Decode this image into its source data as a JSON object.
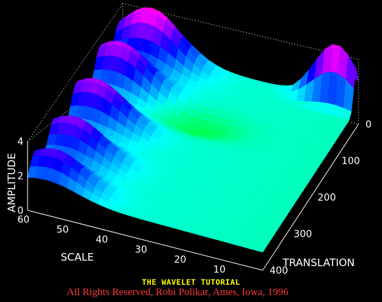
{
  "chart_data": {
    "type": "surface",
    "title": "",
    "xlabel": "TRANSLATION",
    "ylabel": "SCALE",
    "zlabel": "AMPLITUDE",
    "translation_ticks": [
      "0",
      "100",
      "200",
      "300",
      "400"
    ],
    "scale_ticks": [
      "10",
      "20",
      "30",
      "40",
      "50",
      "60"
    ],
    "amplitude_ticks": [
      "0",
      "2",
      "4"
    ],
    "translation_range": [
      0,
      400
    ],
    "scale_range": [
      0,
      60
    ],
    "amplitude_range": [
      0,
      4
    ],
    "colormap": "hsv",
    "grid": true,
    "features": [
      {
        "translation": 15,
        "scale": 52,
        "amplitude": 4.1
      },
      {
        "translation": 95,
        "scale": 55,
        "amplitude": 3.6
      },
      {
        "translation": 195,
        "scale": 55,
        "amplitude": 3.5
      },
      {
        "translation": 290,
        "scale": 55,
        "amplitude": 3.3
      },
      {
        "translation": 370,
        "scale": 55,
        "amplitude": 3.0
      },
      {
        "translation": 10,
        "scale": 5,
        "amplitude": 4.6
      },
      {
        "translation": 130,
        "scale": 33,
        "amplitude": 0.4
      }
    ]
  },
  "caption": {
    "line1": "THE WAVELET TUTORIAL",
    "line2": "All Rights Reserved, Robi Polikar, Ames, Iowa, 1996"
  }
}
